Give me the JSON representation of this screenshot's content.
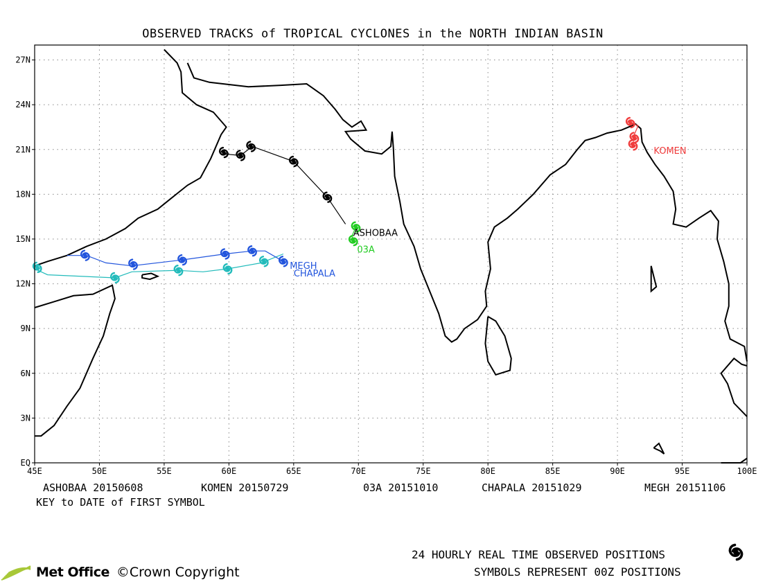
{
  "title": "OBSERVED TRACKS of TROPICAL CYCLONES in the NORTH INDIAN BASIN",
  "axes": {
    "lon_range": [
      45,
      100
    ],
    "lat_range": [
      0,
      28
    ],
    "lon_ticks": [
      "45E",
      "50E",
      "55E",
      "60E",
      "65E",
      "70E",
      "75E",
      "80E",
      "85E",
      "90E",
      "95E",
      "100E"
    ],
    "lat_ticks": [
      "EQ",
      "3N",
      "6N",
      "9N",
      "12N",
      "15N",
      "18N",
      "21N",
      "24N",
      "27N"
    ]
  },
  "chart_data": {
    "type": "scatter",
    "xlabel": "",
    "ylabel": "",
    "xlim": [
      45,
      100
    ],
    "ylim": [
      0,
      28
    ],
    "grid": true,
    "series": [
      {
        "name": "ASHOBAA",
        "color": "#000000",
        "track": [
          [
            59.6,
            20.7
          ],
          [
            60.9,
            20.6
          ],
          [
            61.8,
            21.2
          ],
          [
            65.0,
            20.2
          ],
          [
            67.6,
            17.8
          ],
          [
            69.0,
            16.0
          ]
        ],
        "symbols": [
          [
            59.6,
            20.8
          ],
          [
            60.9,
            20.6
          ],
          [
            61.7,
            21.2
          ],
          [
            65.0,
            20.2
          ],
          [
            67.6,
            17.8
          ]
        ]
      },
      {
        "name": "KOMEN",
        "color": "#f03c3c",
        "track": [
          [
            91.0,
            22.8
          ],
          [
            91.6,
            22.6
          ],
          [
            91.3,
            22.0
          ],
          [
            91.2,
            21.3
          ]
        ],
        "symbols": [
          [
            91.0,
            22.8
          ],
          [
            91.3,
            21.8
          ],
          [
            91.2,
            21.3
          ]
        ]
      },
      {
        "name": "03A",
        "color": "#22cc22",
        "track": [
          [
            69.8,
            15.8
          ],
          [
            69.5,
            15.2
          ],
          [
            69.6,
            14.8
          ]
        ],
        "symbols": [
          [
            69.8,
            15.8
          ],
          [
            69.6,
            14.9
          ]
        ]
      },
      {
        "name": "CHAPALA",
        "color": "#22bbbb",
        "track": [
          [
            45.0,
            13.0
          ],
          [
            46.0,
            12.6
          ],
          [
            51.2,
            12.4
          ],
          [
            52.5,
            12.8
          ],
          [
            56.0,
            12.9
          ],
          [
            58.0,
            12.8
          ],
          [
            59.9,
            13.0
          ],
          [
            62.5,
            13.4
          ],
          [
            64.2,
            14.0
          ]
        ],
        "symbols": [
          [
            45.2,
            13.1
          ],
          [
            51.2,
            12.4
          ],
          [
            56.1,
            12.9
          ],
          [
            59.9,
            13.0
          ],
          [
            62.7,
            13.5
          ]
        ]
      },
      {
        "name": "MEGH",
        "color": "#2255dd",
        "track": [
          [
            47.5,
            13.9
          ],
          [
            49.0,
            13.9
          ],
          [
            50.5,
            13.4
          ],
          [
            52.5,
            13.2
          ],
          [
            56.4,
            13.6
          ],
          [
            59.7,
            14.0
          ],
          [
            61.8,
            14.2
          ],
          [
            62.8,
            14.2
          ],
          [
            64.2,
            13.5
          ]
        ],
        "symbols": [
          [
            48.9,
            13.9
          ],
          [
            52.6,
            13.3
          ],
          [
            56.4,
            13.6
          ],
          [
            59.7,
            14.0
          ],
          [
            61.8,
            14.2
          ],
          [
            64.2,
            13.5
          ]
        ]
      }
    ]
  },
  "storm_labels": [
    {
      "text": "ASHOBAA",
      "lon": 69.6,
      "lat": 15.2,
      "color": "#000000"
    },
    {
      "text": "03A",
      "lon": 69.9,
      "lat": 14.1,
      "color": "#22cc22"
    },
    {
      "text": "KOMEN",
      "lon": 92.8,
      "lat": 20.7,
      "color": "#f03c3c"
    },
    {
      "text": "MEGH",
      "lon": 64.7,
      "lat": 13.0,
      "color": "#2255dd"
    },
    {
      "text": "CHAPALA",
      "lon": 65.0,
      "lat": 12.5,
      "color": "#2255dd"
    }
  ],
  "key": [
    {
      "name": "ASHOBAA",
      "date": "20150608"
    },
    {
      "name": "KOMEN",
      "date": "20150729"
    },
    {
      "name": "03A",
      "date": "20151010"
    },
    {
      "name": "CHAPALA",
      "date": "20151029"
    },
    {
      "name": "MEGH",
      "date": "20151106"
    }
  ],
  "key_caption": "KEY to DATE of FIRST SYMBOL",
  "footer": {
    "positions_note": "24 HOURLY REAL TIME OBSERVED POSITIONS",
    "symbols_note": "SYMBOLS REPRESENT 00Z POSITIONS",
    "brand": "Met Office",
    "copyright": "©Crown Copyright",
    "brand_color": "#a8c838"
  }
}
